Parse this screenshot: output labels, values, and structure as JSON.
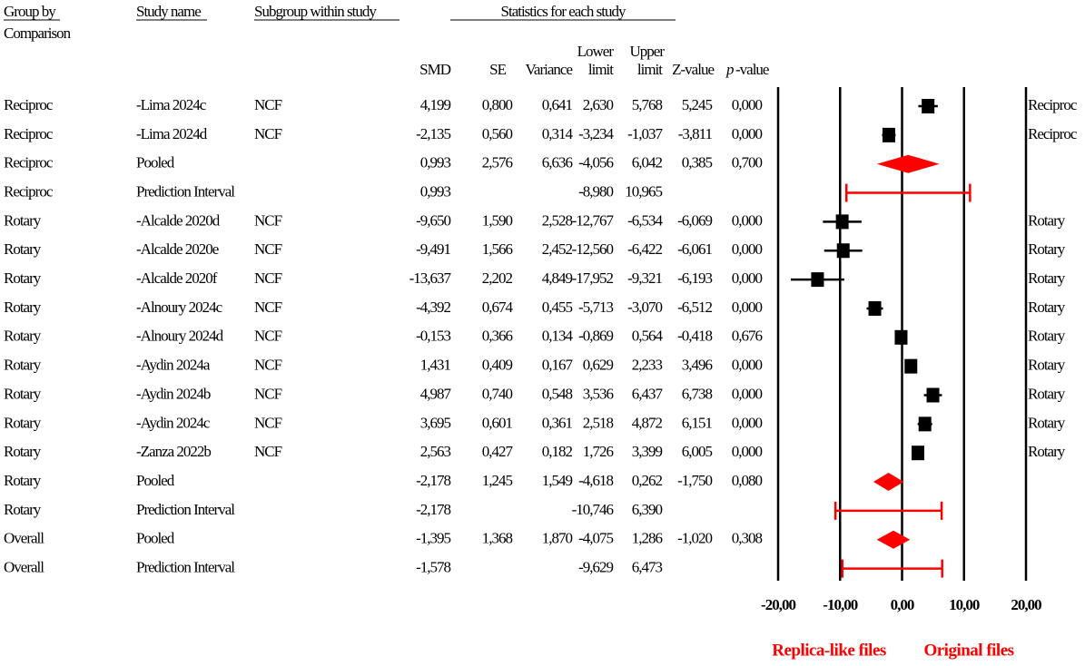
{
  "header": {
    "group_by": "Group by",
    "comparison": "Comparison",
    "study_name": "Study name",
    "subgroup": "Subgroup within study",
    "stats": "Statistics for each study",
    "smd": "SMD",
    "se": "SE",
    "variance": "Variance",
    "lower": "Lower",
    "lower_limit": "limit",
    "upper": "Upper",
    "upper_limit": "limit",
    "z": "Z-value",
    "p": "p",
    "p_rest": "-value"
  },
  "rows": [
    {
      "group": "Reciproc",
      "study": "-Lima 2024c",
      "subgroup": "NCF",
      "se": "0,800",
      "variance": "0,641",
      "z": "5,245",
      "p": "0,000",
      "side": "Reciproc"
    },
    {
      "group": "Reciproc",
      "study": "-Lima 2024d",
      "subgroup": "NCF",
      "se": "0,560",
      "variance": "0,314",
      "z": "-3,811",
      "p": "0,000",
      "side": "Reciproc"
    },
    {
      "group": "Reciproc",
      "study": "Pooled",
      "subgroup": null,
      "se": "2,576",
      "variance": "6,636",
      "z": "0,385",
      "p": "0,700",
      "side": null
    },
    {
      "group": "Reciproc",
      "study": "Prediction Interval",
      "subgroup": null,
      "se": null,
      "variance": null,
      "z": null,
      "p": null,
      "side": null
    },
    {
      "group": "Rotary",
      "study": "-Alcalde 2020d",
      "subgroup": "NCF",
      "se": "1,590",
      "variance": "2,528",
      "z": "-6,069",
      "p": "0,000",
      "side": "Rotary"
    },
    {
      "group": "Rotary",
      "study": "-Alcalde 2020e",
      "subgroup": "NCF",
      "se": "1,566",
      "variance": "2,452",
      "z": "-6,061",
      "p": "0,000",
      "side": "Rotary"
    },
    {
      "group": "Rotary",
      "study": "-Alcalde 2020f",
      "subgroup": "NCF",
      "se": "2,202",
      "variance": "4,849",
      "z": "-6,193",
      "p": "0,000",
      "side": "Rotary"
    },
    {
      "group": "Rotary",
      "study": "-Alnoury 2024c",
      "subgroup": "NCF",
      "se": "0,674",
      "variance": "0,455",
      "z": "-6,512",
      "p": "0,000",
      "side": "Rotary"
    },
    {
      "group": "Rotary",
      "study": "-Alnoury 2024d",
      "subgroup": "NCF",
      "se": "0,366",
      "variance": "0,134",
      "z": "-0,418",
      "p": "0,676",
      "side": "Rotary"
    },
    {
      "group": "Rotary",
      "study": "-Aydin 2024a",
      "subgroup": "NCF",
      "se": "0,409",
      "variance": "0,167",
      "z": "3,496",
      "p": "0,000",
      "side": "Rotary"
    },
    {
      "group": "Rotary",
      "study": "-Aydin 2024b",
      "subgroup": "NCF",
      "se": "0,740",
      "variance": "0,548",
      "z": "6,738",
      "p": "0,000",
      "side": "Rotary"
    },
    {
      "group": "Rotary",
      "study": "-Aydin 2024c",
      "subgroup": "NCF",
      "se": "0,601",
      "variance": "0,361",
      "z": "6,151",
      "p": "0,000",
      "side": "Rotary"
    },
    {
      "group": "Rotary",
      "study": "-Zanza 2022b",
      "subgroup": "NCF",
      "se": "0,427",
      "variance": "0,182",
      "z": "6,005",
      "p": "0,000",
      "side": "Rotary"
    },
    {
      "group": "Rotary",
      "study": "Pooled",
      "subgroup": null,
      "se": "1,245",
      "variance": "1,549",
      "z": "-1,750",
      "p": "0,080",
      "side": null
    },
    {
      "group": "Rotary",
      "study": "Prediction Interval",
      "subgroup": null,
      "se": null,
      "variance": null,
      "z": null,
      "p": null,
      "side": null
    },
    {
      "group": "Overall",
      "study": "Pooled",
      "subgroup": null,
      "se": "1,368",
      "variance": "1,870",
      "z": "-1,020",
      "p": "0,308",
      "side": null
    },
    {
      "group": "Overall",
      "study": "Prediction Interval",
      "subgroup": null,
      "se": null,
      "variance": null,
      "z": null,
      "p": null,
      "side": null
    }
  ],
  "chart_data": {
    "type": "forest",
    "values": [
      4.199,
      -2.135,
      0.993,
      0.993,
      -9.65,
      -9.491,
      -13.637,
      -4.392,
      -0.153,
      1.431,
      4.987,
      3.695,
      2.563,
      -2.178,
      -2.178,
      -1.395,
      -1.578
    ],
    "value_labels": [
      "4,199",
      "-2,135",
      "0,993",
      "0,993",
      "-9,650",
      "-9,491",
      "-13,637",
      "-4,392",
      "-0,153",
      "1,431",
      "4,987",
      "3,695",
      "2,563",
      "-2,178",
      "-2,178",
      "-1,395",
      "-1,578"
    ],
    "lower": [
      2.63,
      -3.234,
      -4.056,
      -8.98,
      -12.767,
      -12.56,
      -17.952,
      -5.713,
      -0.869,
      0.629,
      3.536,
      2.518,
      1.726,
      -4.618,
      -10.746,
      -4.075,
      -9.629
    ],
    "lower_labels": [
      "2,630",
      "-3,234",
      "-4,056",
      "-8,980",
      "-12,767",
      "-12,560",
      "-17,952",
      "-5,713",
      "-0,869",
      "0,629",
      "3,536",
      "2,518",
      "1,726",
      "-4,618",
      "-10,746",
      "-4,075",
      "-9,629"
    ],
    "upper": [
      5.768,
      -1.037,
      6.042,
      10.965,
      -6.534,
      -6.422,
      -9.321,
      -3.07,
      0.564,
      2.233,
      6.437,
      4.872,
      3.399,
      0.262,
      6.39,
      1.286,
      6.473
    ],
    "upper_labels": [
      "5,768",
      "-1,037",
      "6,042",
      "10,965",
      "-6,534",
      "-6,422",
      "-9,321",
      "-3,070",
      "0,564",
      "2,233",
      "6,437",
      "4,872",
      "3,399",
      "0,262",
      "6,390",
      "1,286",
      "6,473"
    ],
    "shapes": [
      "square",
      "square",
      "diamond",
      "interval",
      "square",
      "square",
      "square",
      "square",
      "square",
      "square",
      "square",
      "square",
      "square",
      "diamond",
      "interval",
      "diamond",
      "interval"
    ],
    "study_color": "#000000",
    "pooled_color": "#ff0000",
    "xlim": [
      -20,
      20
    ],
    "xticks": [
      {
        "value": -20,
        "label": "-20,00"
      },
      {
        "value": -10,
        "label": "-10,00"
      },
      {
        "value": 0,
        "label": "0,00"
      },
      {
        "value": 10,
        "label": "10,00"
      },
      {
        "value": 20,
        "label": "20,00"
      }
    ],
    "grid": true,
    "left_label": "Replica-like files",
    "right_label": "Original files"
  }
}
